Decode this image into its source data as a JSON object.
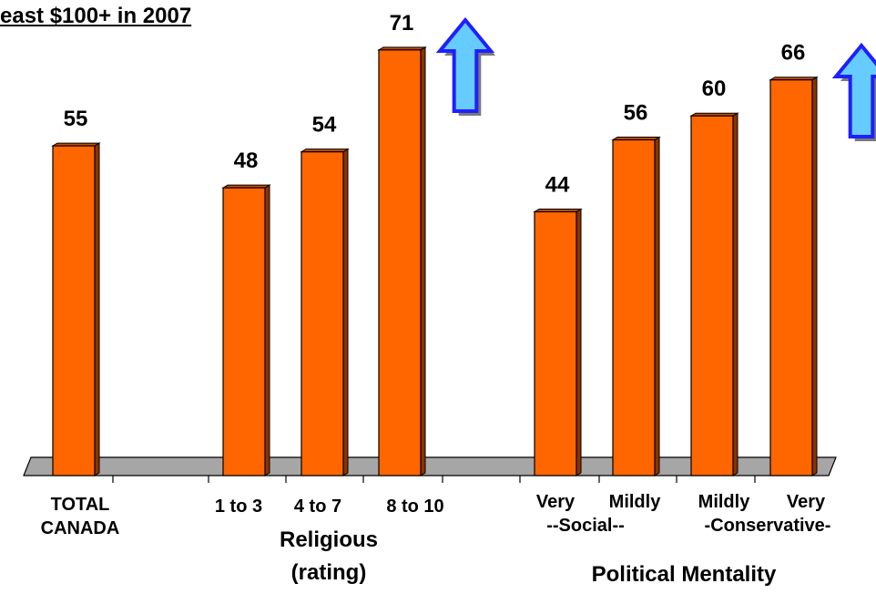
{
  "chart_data": {
    "type": "bar",
    "title": "east $100+ in 2007",
    "ylim": [
      0,
      80
    ],
    "grid": false,
    "colors": {
      "bar": "#FF6600",
      "bar_side": "#8B3300",
      "floor": "#A6A6A6",
      "arrow": "#66CCFF",
      "arrow_outline": "#1F1FFF"
    },
    "categories": [
      "TOTAL CANADA",
      "1 to 3",
      "4 to 7",
      "8 to 10",
      "Very",
      "Mildly",
      "Mildly",
      "Very"
    ],
    "values": [
      55,
      48,
      54,
      71,
      44,
      56,
      60,
      66
    ],
    "category_labels": [
      {
        "lines": [
          "TOTAL",
          "CANADA"
        ]
      },
      {
        "lines": [
          "1 to 3"
        ]
      },
      {
        "lines": [
          "4 to 7"
        ]
      },
      {
        "lines": [
          "8 to 10"
        ]
      },
      {
        "lines": [
          "Very"
        ]
      },
      {
        "lines": [
          "Mildly"
        ]
      },
      {
        "lines": [
          "Mildly"
        ]
      },
      {
        "lines": [
          "Very"
        ]
      }
    ],
    "sublabels": [
      "--Social--",
      "-Conservative-"
    ],
    "group_labels": [
      {
        "lines": [
          "Religious",
          "(rating)"
        ]
      },
      {
        "lines": [
          "Political Mentality"
        ]
      }
    ],
    "annotations": [
      "up-arrow-icon",
      "up-arrow-icon"
    ]
  }
}
